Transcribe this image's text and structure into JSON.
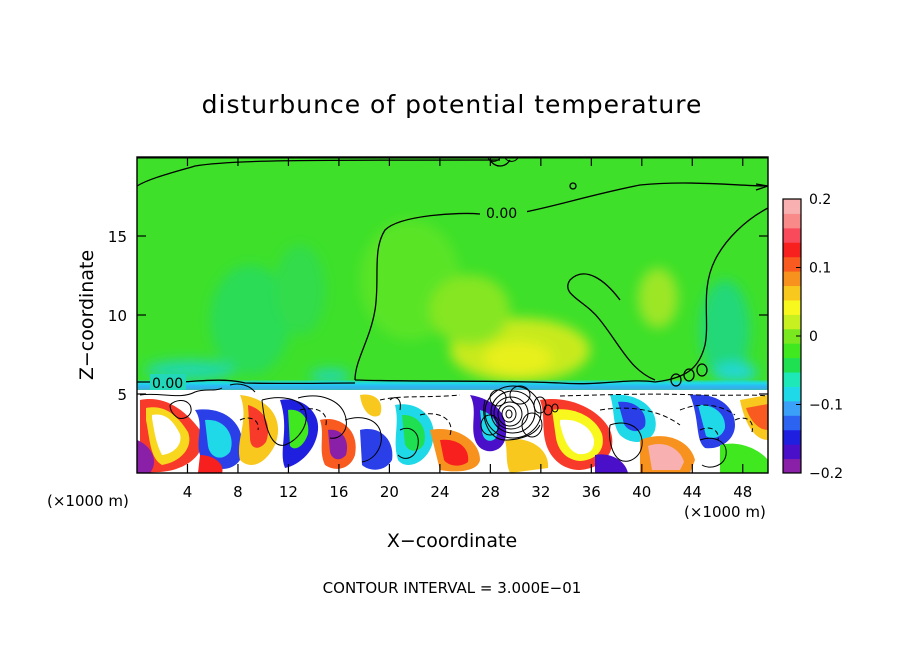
{
  "chart_data": {
    "type": "heatmap",
    "title": "disturbunce of potential temperature",
    "xlabel": "X−coordinate",
    "ylabel": "Z−coordinate",
    "x_unit_label": "(×1000 m)",
    "y_unit_label": "(×1000 m)",
    "footer": "CONTOUR INTERVAL = 3.000E−01",
    "xlim": [
      0,
      50
    ],
    "ylim": [
      0,
      20
    ],
    "x_ticks": [
      4,
      8,
      12,
      16,
      20,
      24,
      28,
      32,
      36,
      40,
      44,
      48
    ],
    "y_ticks": [
      5,
      10,
      15
    ],
    "colorbar": {
      "range": [
        -0.2,
        0.2
      ],
      "tick_values": [
        0.2,
        0.1,
        0,
        -0.1,
        -0.2
      ],
      "tick_labels": [
        "0.2",
        "0.1",
        "0",
        "−0.1",
        "−0.2"
      ],
      "colors": [
        "#8a1fa8",
        "#4a0fc8",
        "#1f1fe0",
        "#2c63f0",
        "#3aa0f8",
        "#1fd8e8",
        "#1fe8b8",
        "#1fe050",
        "#3fe81f",
        "#7ae81f",
        "#c8ef1f",
        "#f8f81f",
        "#f8c81f",
        "#f8921f",
        "#f85a1f",
        "#f81f1f",
        "#f84a5a",
        "#f88a8a",
        "#f8b0b0"
      ]
    },
    "contour_labels": [
      "0.00",
      "0.00"
    ],
    "field_summary": [
      {
        "region": "upper layer above ~5.5 km",
        "value": 0.02
      },
      {
        "region": "warm core near x=28-30 km, z=6-8 km",
        "value": 0.08
      },
      {
        "region": "weakly cool band at z~5.5 km",
        "value": -0.05
      },
      {
        "region": "turbulent lower layer below ~5 km",
        "value_range": [
          -0.2,
          0.2
        ]
      }
    ]
  }
}
